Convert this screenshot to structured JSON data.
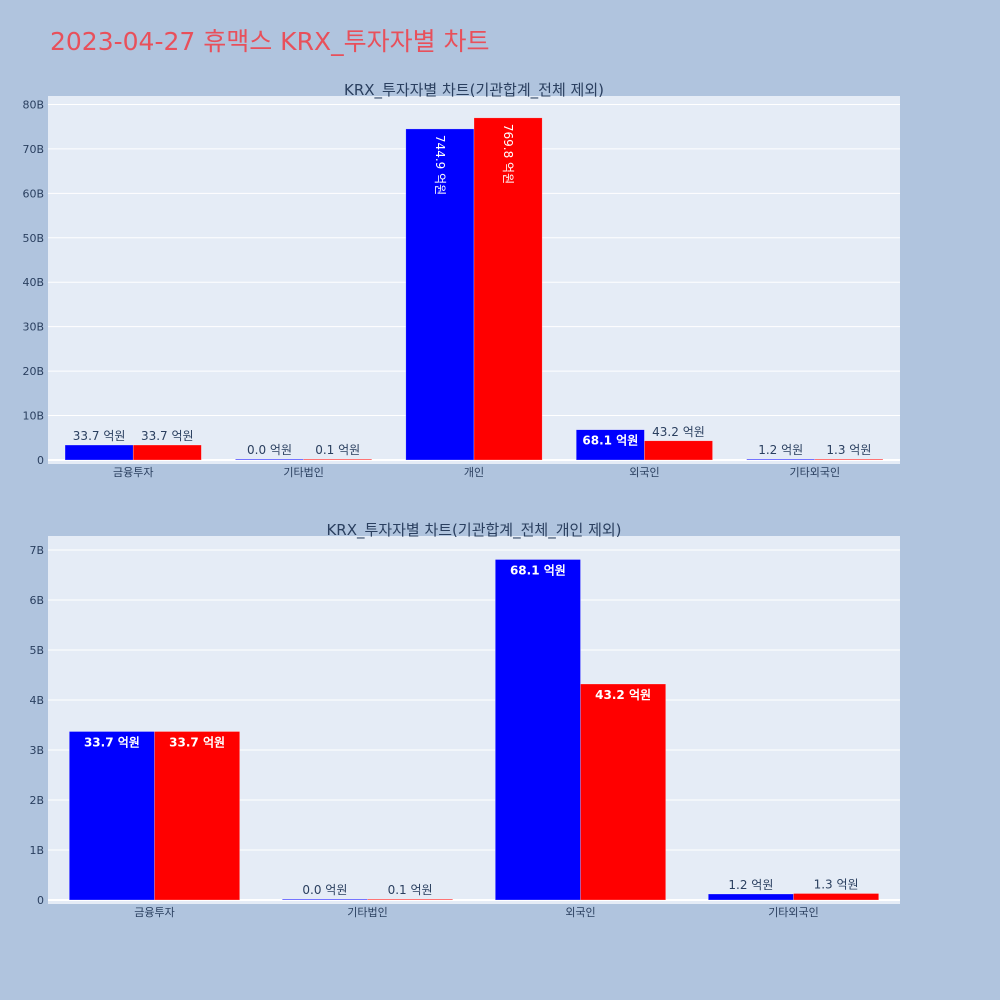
{
  "page_title": "2023-04-27 휴맥스 KRX_투자자별 차트",
  "colors": {
    "background": "#b0c4de",
    "plot_bg": "#e5ecf6",
    "grid": "#ffffff",
    "title": "#e8505b",
    "series1": "#0000ff",
    "series2": "#ff0000"
  },
  "chart_data": [
    {
      "type": "bar",
      "title": "KRX_투자자별 차트(기관합계_전체 제외)",
      "categories": [
        "금융투자",
        "기타법인",
        "개인",
        "외국인",
        "기타외국인"
      ],
      "series": [
        {
          "color": "#0000ff",
          "values": [
            3370000000,
            0,
            74490000000,
            6810000000,
            120000000
          ],
          "labels": [
            "33.7 억원",
            "0.0 억원",
            "744.9 억원",
            "68.1 억원",
            "1.2 억원"
          ]
        },
        {
          "color": "#ff0000",
          "values": [
            3370000000,
            10000000,
            76980000000,
            4320000000,
            130000000
          ],
          "labels": [
            "33.7 억원",
            "0.1 억원",
            "769.8 억원",
            "43.2 억원",
            "1.3 억원"
          ]
        }
      ],
      "ylim": [
        0,
        81000000000
      ],
      "yticks": [
        0,
        10000000000,
        20000000000,
        30000000000,
        40000000000,
        50000000000,
        60000000000,
        70000000000,
        80000000000
      ],
      "ytick_labels": [
        "0",
        "10B",
        "20B",
        "30B",
        "40B",
        "50B",
        "60B",
        "70B",
        "80B"
      ],
      "grid": true,
      "legend": "none"
    },
    {
      "type": "bar",
      "title": "KRX_투자자별 차트(기관합계_전체_개인 제외)",
      "categories": [
        "금융투자",
        "기타법인",
        "외국인",
        "기타외국인"
      ],
      "series": [
        {
          "color": "#0000ff",
          "values": [
            3370000000,
            0,
            6810000000,
            120000000
          ],
          "labels": [
            "33.7 억원",
            "0.0 억원",
            "68.1 억원",
            "1.2 억원"
          ]
        },
        {
          "color": "#ff0000",
          "values": [
            3370000000,
            10000000,
            4320000000,
            130000000
          ],
          "labels": [
            "33.7 억원",
            "0.1 억원",
            "43.2 억원",
            "1.3 억원"
          ]
        }
      ],
      "ylim": [
        0,
        7200000000
      ],
      "yticks": [
        0,
        1000000000,
        2000000000,
        3000000000,
        4000000000,
        5000000000,
        6000000000,
        7000000000
      ],
      "ytick_labels": [
        "0",
        "1B",
        "2B",
        "3B",
        "4B",
        "5B",
        "6B",
        "7B"
      ],
      "grid": true,
      "legend": "none"
    }
  ]
}
